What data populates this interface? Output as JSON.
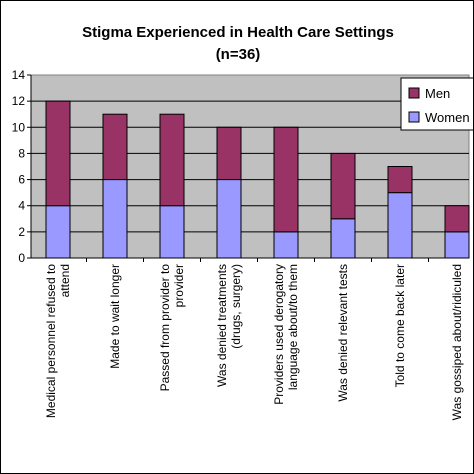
{
  "chart_data": {
    "type": "bar",
    "stacked": true,
    "title": "Stigma Experienced in Health Care Settings",
    "subtitle": "(n=36)",
    "categories": [
      [
        "Medical personnel refused to",
        "attend"
      ],
      [
        "Made to wait longer"
      ],
      [
        "Passed from provider to",
        "provider"
      ],
      [
        "Was denied treatments",
        "(drugs, surgery)"
      ],
      [
        "Providers used derogatory",
        "language about/to them"
      ],
      [
        "Was denied relevant tests"
      ],
      [
        "Told to come back later"
      ],
      [
        "Was gossiped about/ridiculed"
      ]
    ],
    "series": [
      {
        "name": "Women",
        "color": "#9999ff",
        "values": [
          4,
          6,
          4,
          6,
          2,
          3,
          5,
          2
        ]
      },
      {
        "name": "Men",
        "color": "#993366",
        "values": [
          8,
          5,
          7,
          4,
          8,
          5,
          2,
          2
        ]
      }
    ],
    "ylim": [
      0,
      14
    ],
    "yticks": [
      0,
      2,
      4,
      6,
      8,
      10,
      12,
      14
    ],
    "grid": true,
    "plot_background": "#c0c0c0",
    "legend": {
      "position": "top-right",
      "labels": [
        "Men",
        "Women"
      ]
    }
  }
}
